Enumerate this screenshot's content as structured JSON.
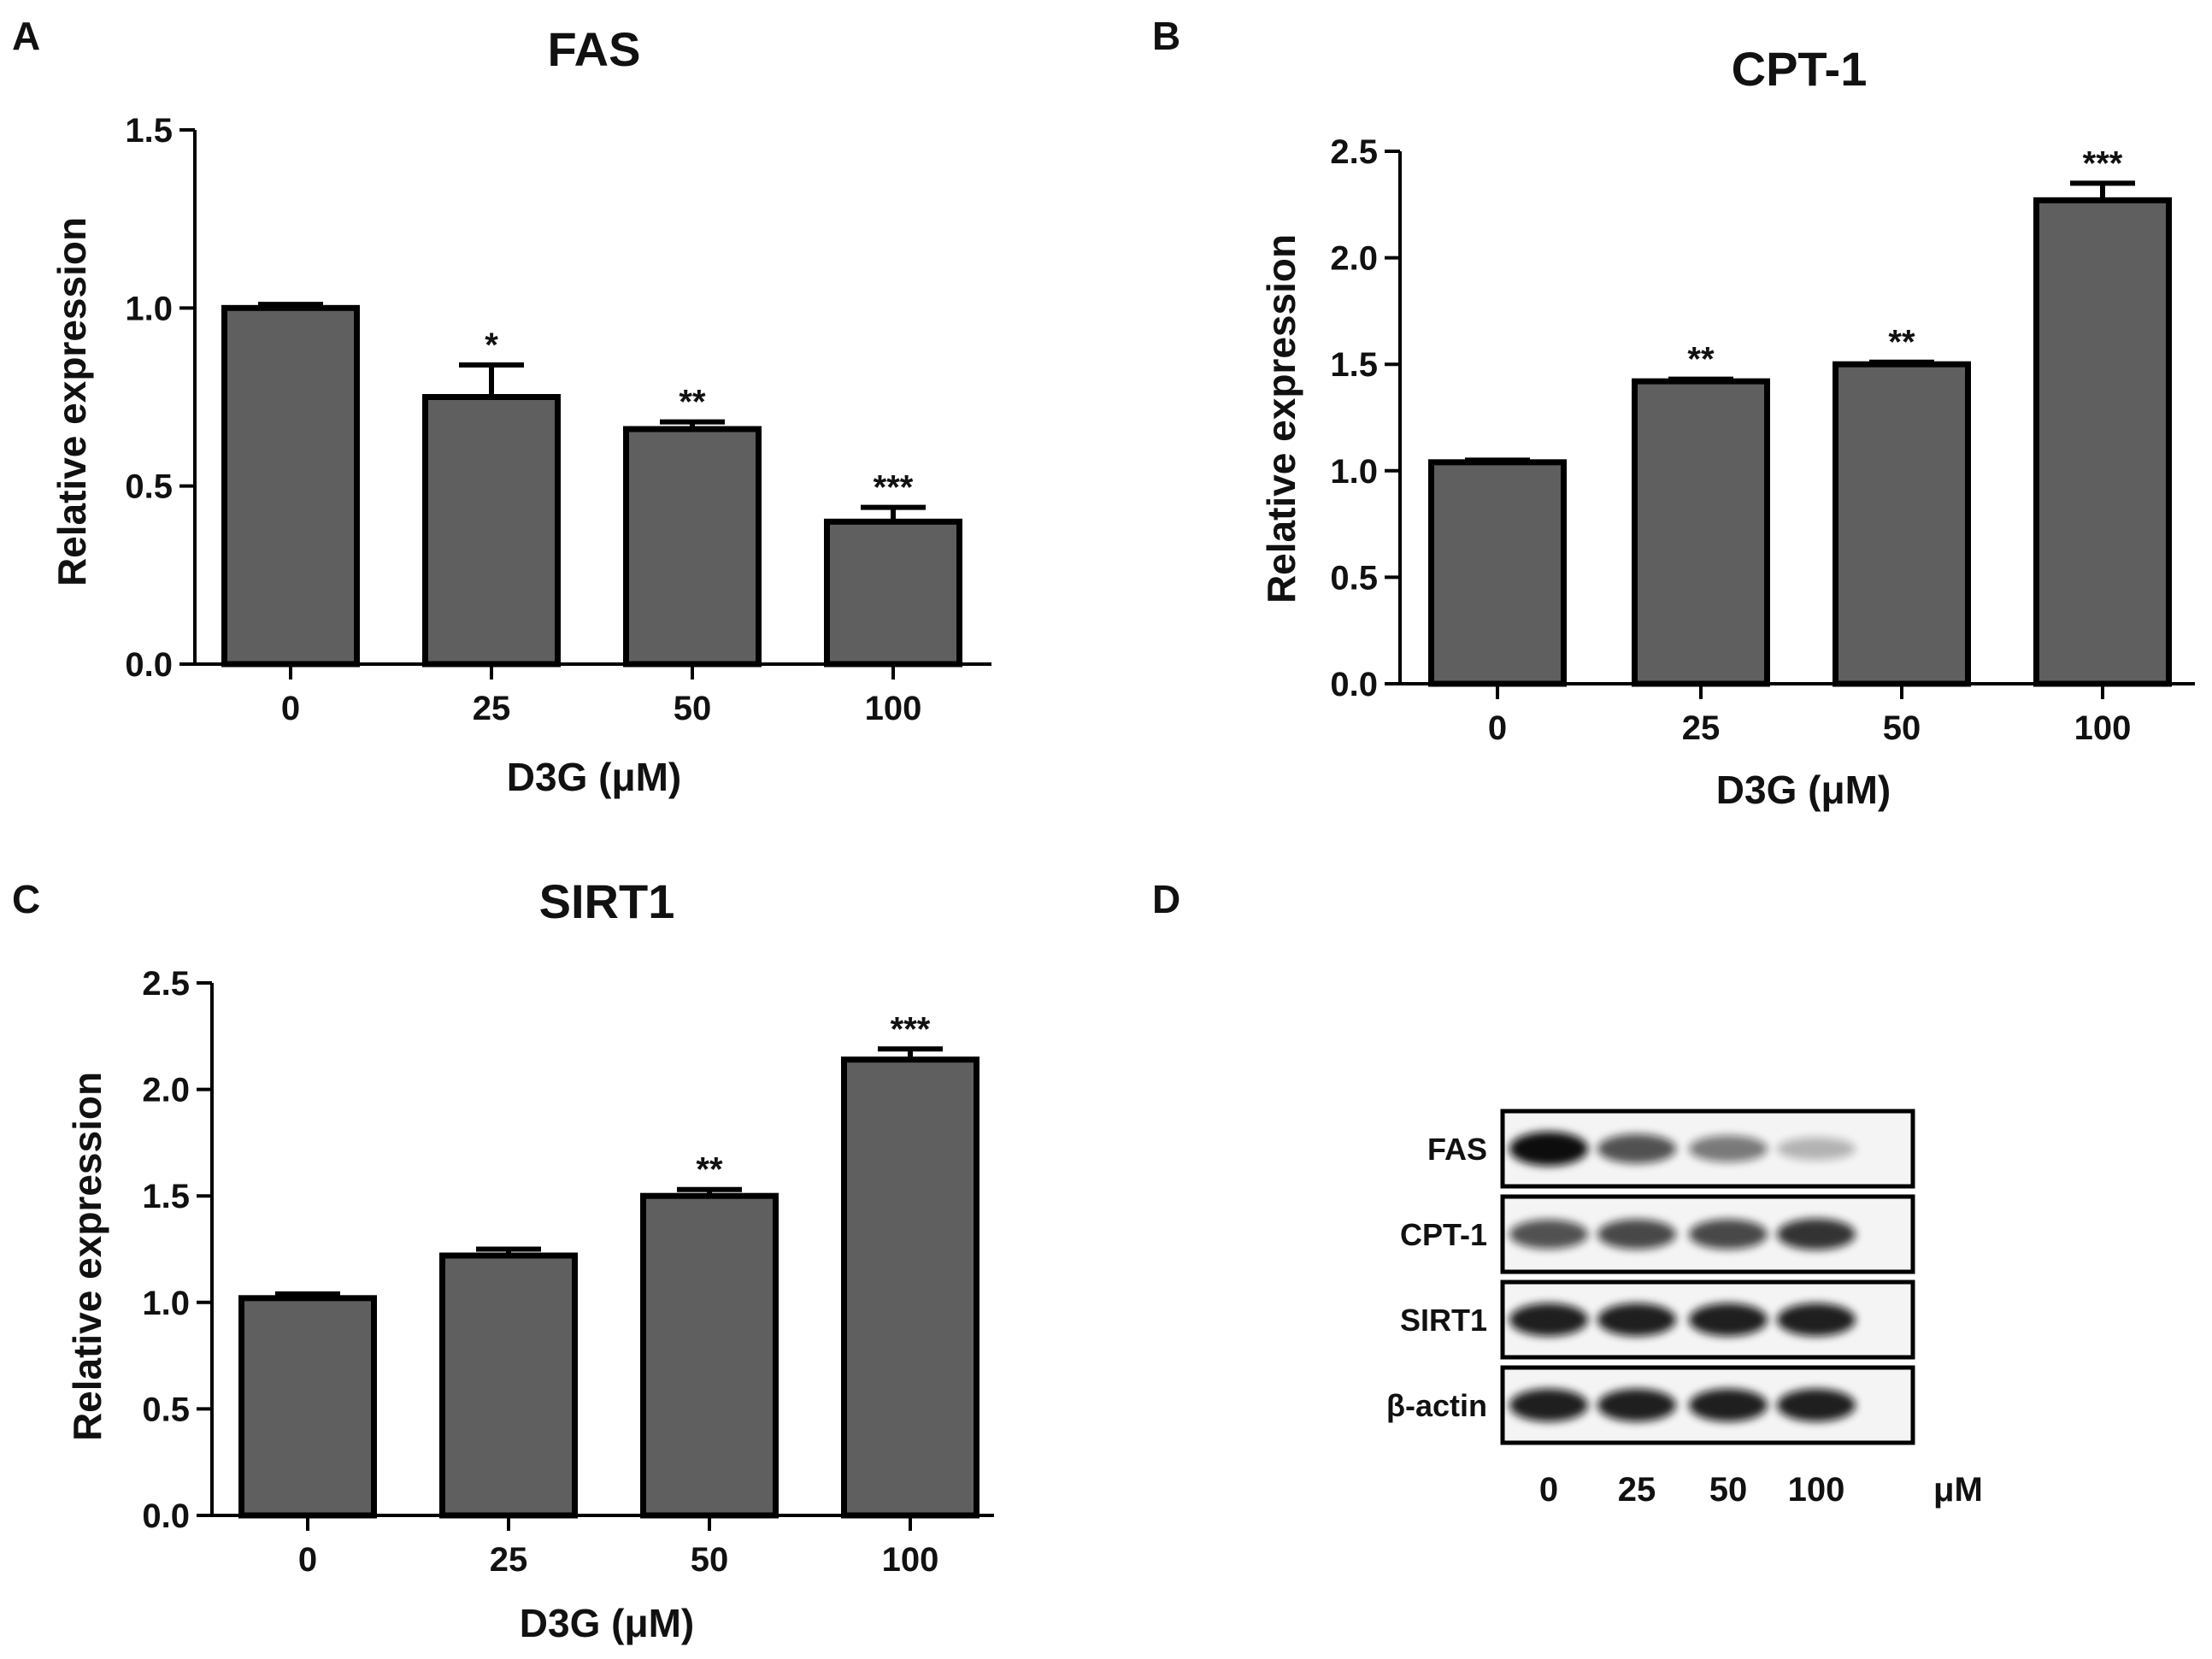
{
  "chart_data": [
    {
      "panel": "A",
      "type": "bar",
      "title": "FAS",
      "categories": [
        "0",
        "25",
        "50",
        "100"
      ],
      "values": [
        1.0,
        0.75,
        0.66,
        0.4
      ],
      "errors": [
        0.01,
        0.09,
        0.02,
        0.04
      ],
      "significance": [
        "",
        "*",
        "**",
        "***"
      ],
      "xlabel": "D3G (μM)",
      "ylabel": "Relative expression",
      "ylim": [
        0,
        1.5
      ],
      "yticks": [
        "0.0",
        "0.5",
        "1.0",
        "1.5"
      ],
      "bar_color": "#5f5f5f"
    },
    {
      "panel": "B",
      "type": "bar",
      "title": "CPT-1",
      "categories": [
        "0",
        "25",
        "50",
        "100"
      ],
      "values": [
        1.04,
        1.42,
        1.5,
        2.27
      ],
      "errors": [
        0.01,
        0.01,
        0.01,
        0.08
      ],
      "significance": [
        "",
        "**",
        "**",
        "***"
      ],
      "xlabel": "D3G (μM)",
      "ylabel": "Relative expression",
      "ylim": [
        0,
        2.5
      ],
      "yticks": [
        "0.0",
        "0.5",
        "1.0",
        "1.5",
        "2.0",
        "2.5"
      ],
      "bar_color": "#5f5f5f"
    },
    {
      "panel": "C",
      "type": "bar",
      "title": "SIRT1",
      "categories": [
        "0",
        "25",
        "50",
        "100"
      ],
      "values": [
        1.02,
        1.22,
        1.5,
        2.14
      ],
      "errors": [
        0.02,
        0.03,
        0.03,
        0.05
      ],
      "significance": [
        "",
        "",
        "**",
        "***"
      ],
      "xlabel": "D3G (μM)",
      "ylabel": "Relative expression",
      "ylim": [
        0,
        2.5
      ],
      "yticks": [
        "0.0",
        "0.5",
        "1.0",
        "1.5",
        "2.0",
        "2.5"
      ],
      "bar_color": "#5f5f5f"
    }
  ],
  "blot": {
    "panel": "D",
    "rows": [
      {
        "label": "FAS",
        "intensities": [
          1.0,
          0.65,
          0.45,
          0.15
        ]
      },
      {
        "label": "CPT-1",
        "intensities": [
          0.65,
          0.7,
          0.7,
          0.8
        ]
      },
      {
        "label": "SIRT1",
        "intensities": [
          0.9,
          0.9,
          0.9,
          0.9
        ]
      },
      {
        "label": "β-actin",
        "intensities": [
          0.9,
          0.9,
          0.9,
          0.9
        ]
      }
    ],
    "lanes": [
      "0",
      "25",
      "50",
      "100"
    ],
    "unit": "μM"
  }
}
